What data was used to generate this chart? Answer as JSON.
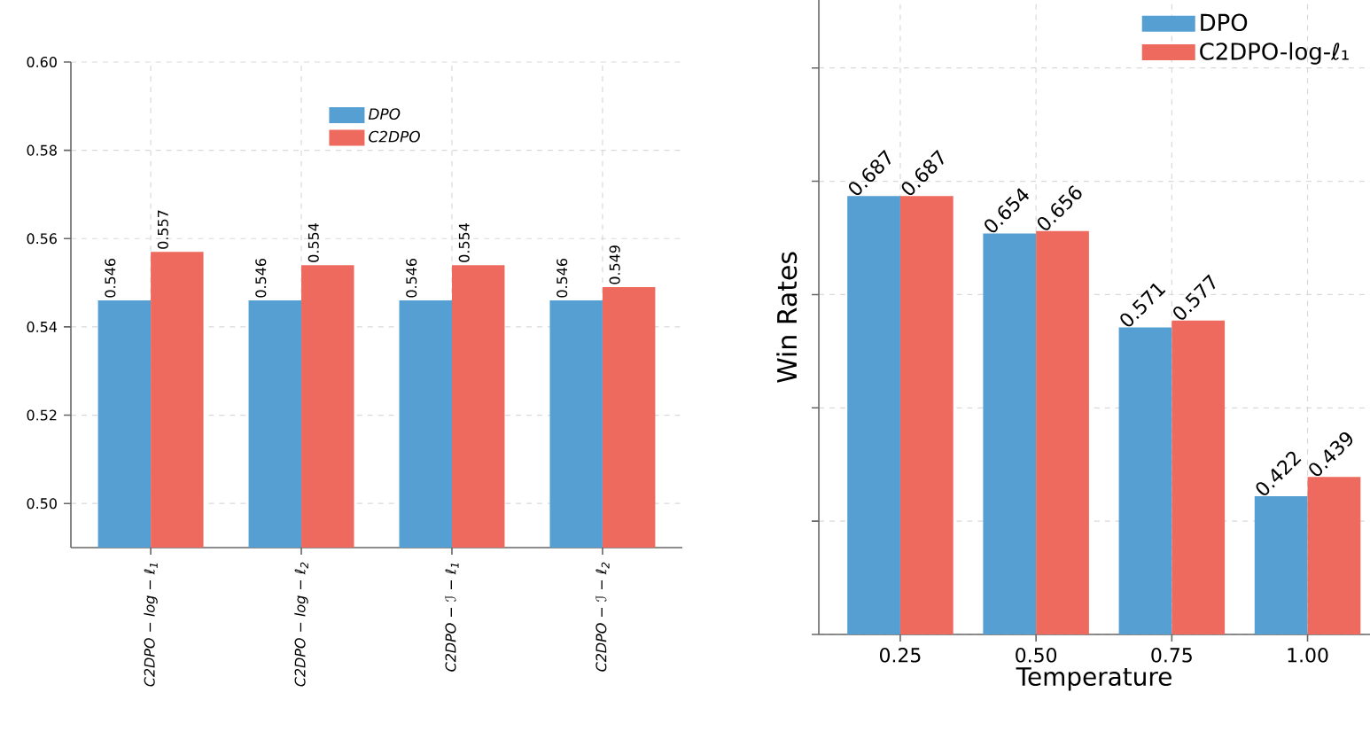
{
  "chart_data": [
    {
      "type": "bar",
      "categories": [
        "C2DPO − log − ℓ$_{1}$",
        "C2DPO − log − ℓ$_{2}$",
        "C2DPO − ℐ − ℓ$_{1}$",
        "C2DPO − ℐ − ℓ$_{2}$"
      ],
      "series": [
        {
          "name": "DPO",
          "color": "#569fd3",
          "values": [
            0.546,
            0.546,
            0.546,
            0.546
          ]
        },
        {
          "name": "C2DPO",
          "color": "#ee6a5f",
          "values": [
            0.557,
            0.554,
            0.554,
            0.549
          ]
        }
      ],
      "ylim": [
        0.49,
        0.6
      ],
      "yticks": [
        {
          "value": 0.5,
          "label": "0.50"
        },
        {
          "value": 0.52,
          "label": "0.52"
        },
        {
          "value": 0.54,
          "label": "0.54"
        },
        {
          "value": 0.56,
          "label": "0.56"
        },
        {
          "value": 0.58,
          "label": "0.58"
        },
        {
          "value": 0.6,
          "label": "0.60"
        }
      ],
      "grid": true,
      "legend": "top",
      "data_labels": true
    },
    {
      "type": "bar",
      "categories": [
        "0.25",
        "0.50",
        "0.75",
        "1.00"
      ],
      "series": [
        {
          "name": "DPO",
          "color": "#569fd3",
          "values": [
            0.687,
            0.654,
            0.571,
            0.422
          ]
        },
        {
          "name": "C2DPO-log-ℓ₁",
          "color": "#ee6a5f",
          "values": [
            0.687,
            0.656,
            0.577,
            0.439
          ]
        }
      ],
      "xlabel": "Temperature",
      "ylabel": "Win Rates",
      "ylim": [
        0.3,
        0.86
      ],
      "yticks": [
        {
          "value": 0.3,
          "label": null
        },
        {
          "value": 0.4,
          "label": null
        },
        {
          "value": 0.5,
          "label": null
        },
        {
          "value": 0.6,
          "label": null
        },
        {
          "value": 0.7,
          "label": null
        },
        {
          "value": 0.8,
          "label": null
        }
      ],
      "tick_labels": "x",
      "grid": true,
      "legend": "top right",
      "data_labels": true
    }
  ]
}
